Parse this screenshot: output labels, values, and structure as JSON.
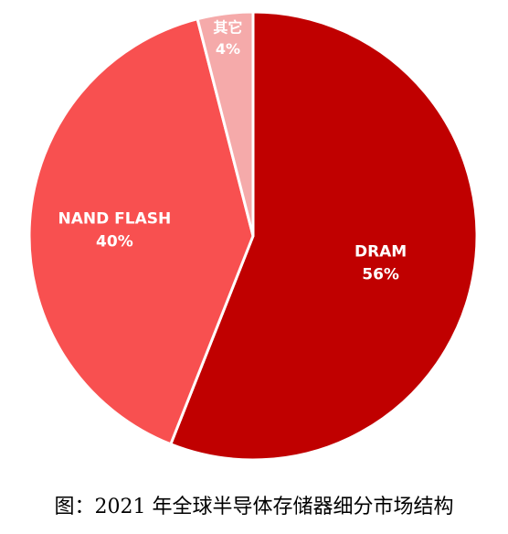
{
  "chart_data": {
    "type": "pie",
    "categories": [
      "DRAM",
      "NAND FLASH",
      "其它"
    ],
    "values": [
      56,
      40,
      4
    ],
    "value_labels": [
      "56%",
      "40%",
      "4%"
    ],
    "colors": [
      "#c00000",
      "#f85050",
      "#f5aaaa"
    ],
    "start_angle_deg": 0,
    "direction": "clockwise",
    "legend": "none"
  },
  "caption": "图：2021 年全球半导体存储器细分市场结构"
}
